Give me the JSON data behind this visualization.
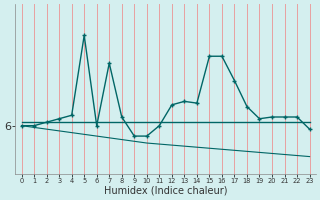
{
  "xlabel": "Humidex (Indice chaleur)",
  "background_color": "#d4efef",
  "line_color": "#006666",
  "grid_color_v": "#e8a0a0",
  "x": [
    0,
    1,
    2,
    3,
    4,
    5,
    6,
    7,
    8,
    9,
    10,
    11,
    12,
    13,
    14,
    15,
    16,
    17,
    18,
    19,
    20,
    21,
    22,
    23
  ],
  "y_main": [
    6.0,
    6.0,
    6.1,
    6.2,
    6.3,
    8.6,
    6.0,
    7.8,
    6.25,
    5.7,
    5.7,
    6.0,
    6.6,
    6.7,
    6.65,
    8.0,
    8.0,
    7.3,
    6.55,
    6.2,
    6.25,
    6.25,
    6.25,
    5.9
  ],
  "y_avg": [
    6.1,
    6.1,
    6.1,
    6.1,
    6.1,
    6.1,
    6.1,
    6.1,
    6.1,
    6.1,
    6.1,
    6.1,
    6.1,
    6.1,
    6.1,
    6.1,
    6.1,
    6.1,
    6.1,
    6.1,
    6.1,
    6.1,
    6.1,
    6.1
  ],
  "y_trend": [
    6.0,
    5.95,
    5.9,
    5.85,
    5.8,
    5.75,
    5.7,
    5.65,
    5.6,
    5.55,
    5.5,
    5.47,
    5.44,
    5.41,
    5.38,
    5.35,
    5.32,
    5.29,
    5.26,
    5.23,
    5.2,
    5.17,
    5.14,
    5.11
  ],
  "ytick_label": "6",
  "ytick_value": 6.0,
  "ylim": [
    4.6,
    9.5
  ],
  "xlim": [
    -0.5,
    23.5
  ]
}
